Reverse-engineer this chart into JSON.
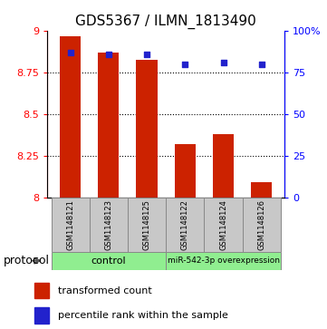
{
  "title": "GDS5367 / ILMN_1813490",
  "samples": [
    "GSM1148121",
    "GSM1148123",
    "GSM1148125",
    "GSM1148122",
    "GSM1148124",
    "GSM1148126"
  ],
  "transformed_counts": [
    8.97,
    8.87,
    8.83,
    8.32,
    8.38,
    8.09
  ],
  "percentile_ranks": [
    87,
    86,
    86,
    80,
    81,
    80
  ],
  "bar_bottom": 8.0,
  "ylim_left": [
    8.0,
    9.0
  ],
  "ylim_right": [
    0,
    100
  ],
  "yticks_left": [
    8.0,
    8.25,
    8.5,
    8.75,
    9.0
  ],
  "ytick_labels_left": [
    "8",
    "8.25",
    "8.5",
    "8.75",
    "9"
  ],
  "yticks_right": [
    0,
    25,
    50,
    75,
    100
  ],
  "ytick_labels_right": [
    "0",
    "25",
    "50",
    "75",
    "100%"
  ],
  "bar_color": "#CC2200",
  "dot_color": "#2222CC",
  "control_group": [
    0,
    1,
    2
  ],
  "treatment_group": [
    3,
    4,
    5
  ],
  "control_label": "control",
  "treatment_label": "miR-542-3p overexpression",
  "protocol_label": "protocol",
  "legend_bar_label": "transformed count",
  "legend_dot_label": "percentile rank within the sample",
  "group_box_color": "#90EE90",
  "sample_box_color": "#C8C8C8",
  "title_fontsize": 11,
  "tick_fontsize": 8,
  "legend_fontsize": 8,
  "protocol_fontsize": 9,
  "grid_yticks": [
    8.25,
    8.5,
    8.75
  ]
}
